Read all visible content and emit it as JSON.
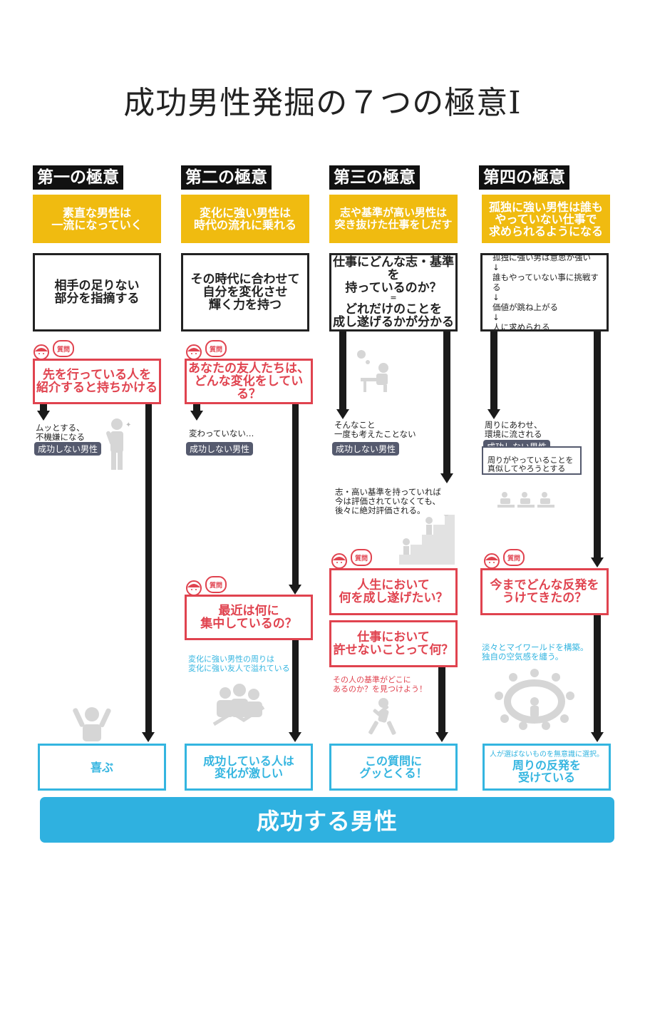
{
  "title": "成功男性発掘の７つの極意Ⅰ",
  "colors": {
    "header_bg": "#111111",
    "yellow": "#f0bb10",
    "red": "#e0434f",
    "blue": "#34b5e0",
    "pill": "#555a6e",
    "final": "#2fb1e0"
  },
  "question_label": "質問",
  "columns": [
    {
      "header": "第一の極意",
      "yellow": "素直な男性は\n一流になっていく",
      "box": "相手の足りない\n部分を指摘する",
      "question": "先を行っている人を\n紹介すると持ちかける",
      "note": "ムッとする、\n不機嫌になる",
      "pill": "成功しない男性",
      "result": "喜ぶ"
    },
    {
      "header": "第二の極意",
      "yellow": "変化に強い男性は\n時代の流れに乗れる",
      "box": "その時代に合わせて\n自分を変化させ\n輝く力を持つ",
      "question": "あなたの友人たちは、\nどんな変化をしている？",
      "note": "変わっていない…",
      "pill": "成功しない男性",
      "question2": "最近は何に\n集中しているの？",
      "note2": "変化に強い男性の周りは\n変化に強い友人で溢れている",
      "result": "成功している人は\n変化が激しい"
    },
    {
      "header": "第三の極意",
      "yellow": "志や基準が高い男性は\n突き抜けた仕事をしだす",
      "box_top": "仕事にどんな志・基準を\n持っているのか？",
      "box_eq": "＝",
      "box_bottom": "どれだけのことを\n成し遂げるかが分かる",
      "note": "そんなこと\n一度も考えたことない",
      "pill": "成功しない男性",
      "note_right": "志・高い基準を持っていれば\n今は評価されていなくても、\n後々に絶対評価される。",
      "question": "人生において\n何を成し遂げたい？",
      "question2": "仕事において\n許せないことって何？",
      "note2": "その人の基準がどこに\nあるのか？を見つけよう！",
      "result": "この質問に\nグッとくる！"
    },
    {
      "header": "第四の極意",
      "yellow": "孤独に強い男性は誰も\nやっていない仕事で\n求められるようになる",
      "box_lines": "孤独に強い男は意思が強い\n↓\n誰もやっていない事に挑戦する\n↓\n価値が跳ね上がる\n↓\n人に求められる",
      "note": "周りにあわせ、\n環境に流される",
      "pill": "成功しない男性",
      "subnote": "周りがやっていることを\n真似してやろうとする",
      "question": "今までどんな反発を\nうけてきたの？",
      "note2": "淡々とマイワールドを構築。\n独自の空気感を纏う。",
      "result_small": "人が選ばないものを無意識に選択。",
      "result": "周りの反発を\n受けている"
    }
  ],
  "final": "成功する男性"
}
